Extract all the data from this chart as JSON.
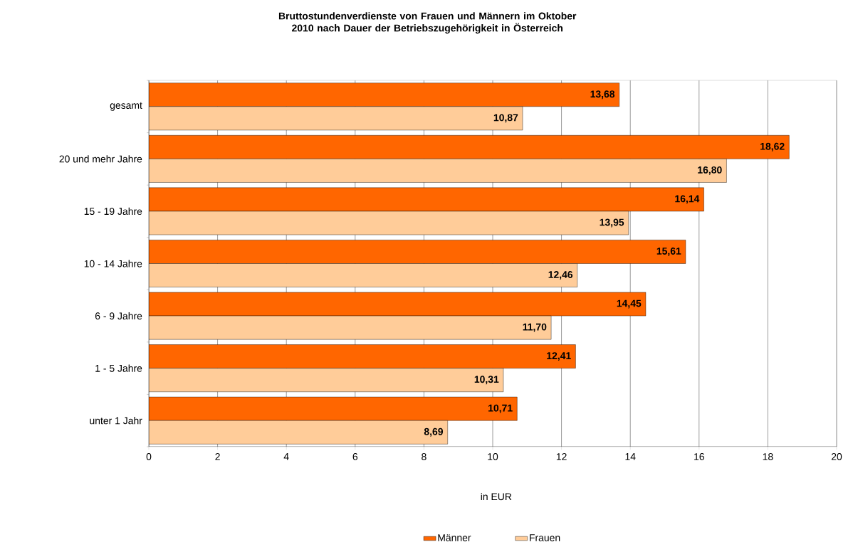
{
  "chart_data": {
    "type": "bar",
    "orientation": "horizontal",
    "title": "Bruttostundenverdienste von Frauen und Männern im Oktober 2010 nach Dauer der Betriebszugehörigkeit in Österreich",
    "xlabel": "in EUR",
    "categories": [
      "gesamt",
      "20 und mehr Jahre",
      "15 - 19 Jahre",
      "10 - 14 Jahre",
      "6 - 9 Jahre",
      "1 - 5 Jahre",
      "unter 1 Jahr"
    ],
    "series": [
      {
        "name": "Männer",
        "color": "#ff6600",
        "values": [
          13.68,
          18.62,
          16.14,
          15.61,
          14.45,
          12.41,
          10.71
        ],
        "value_labels": [
          "13,68",
          "18,62",
          "16,14",
          "15,61",
          "14,45",
          "12,41",
          "10,71"
        ]
      },
      {
        "name": "Frauen",
        "color": "#ffcc99",
        "values": [
          10.87,
          16.8,
          13.95,
          12.46,
          11.7,
          10.31,
          8.69
        ],
        "value_labels": [
          "10,87",
          "16,80",
          "13,95",
          "12,46",
          "11,70",
          "10,31",
          "8,69"
        ]
      }
    ],
    "xlim": [
      0,
      20
    ],
    "xticks": [
      0,
      2,
      4,
      6,
      8,
      10,
      12,
      14,
      16,
      18,
      20
    ],
    "grid": "x",
    "legend": "bottom"
  }
}
